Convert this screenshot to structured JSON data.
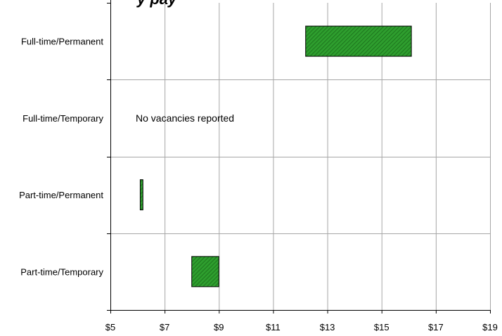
{
  "title_fragment": "y  pay",
  "note": "No vacancies reported",
  "colors": {
    "bar_fill": "#2e9e2e",
    "bar_hatch": "#1a6b1a",
    "grid": "#a6a6a6",
    "axis": "#000000"
  },
  "chart_data": {
    "type": "bar",
    "orientation": "horizontal",
    "subtype": "floating-range",
    "categories": [
      "Full-time/Permanent",
      "Full-time/Temporary",
      "Part-time/Permanent",
      "Part-time/Temporary"
    ],
    "ranges": [
      {
        "category": "Full-time/Permanent",
        "low": 12.2,
        "high": 16.1
      },
      {
        "category": "Full-time/Temporary",
        "low": null,
        "high": null
      },
      {
        "category": "Part-time/Permanent",
        "low": 6.1,
        "high": 6.2
      },
      {
        "category": "Part-time/Temporary",
        "low": 8.0,
        "high": 9.0
      }
    ],
    "xlim": [
      5,
      19
    ],
    "xticks": [
      5,
      7,
      9,
      11,
      13,
      15,
      17,
      19
    ],
    "xtick_labels": [
      "$5",
      "$7",
      "$9",
      "$11",
      "$13",
      "$15",
      "$17",
      "$19"
    ],
    "grid": true,
    "xlabel": "",
    "ylabel": ""
  }
}
